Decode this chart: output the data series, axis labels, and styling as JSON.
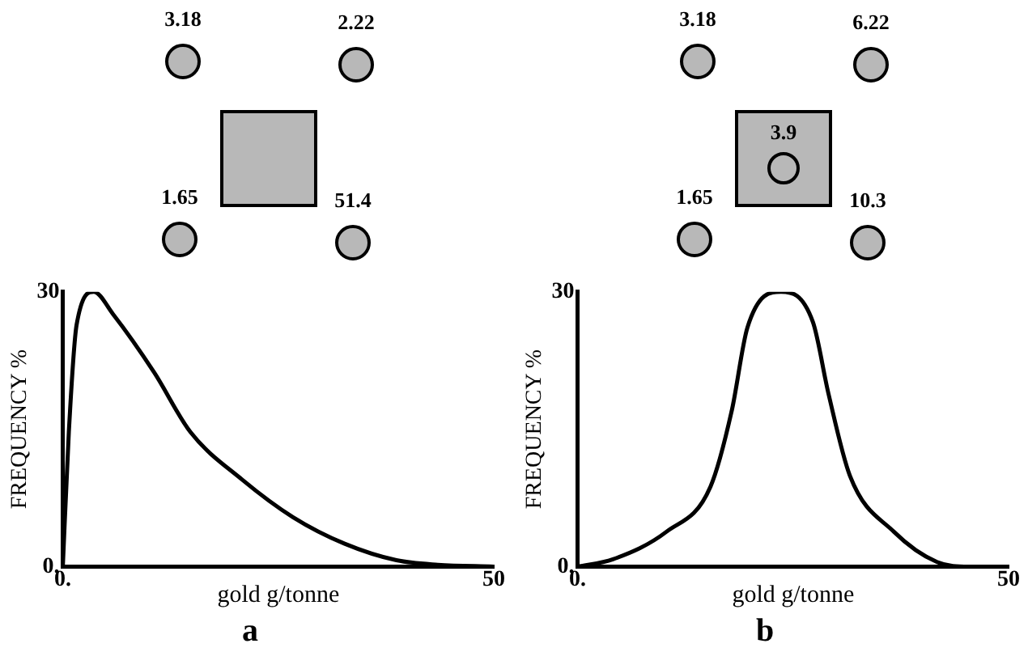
{
  "chart_data": [
    {
      "type": "line",
      "title": "a",
      "xlabel": "gold g/tonne",
      "ylabel": "FREQUENCY %",
      "annotations": [
        "3.18",
        "2.22",
        "1.65",
        "51.4"
      ],
      "xlim": [
        0,
        50
      ],
      "ylim": [
        0,
        30
      ],
      "xticks": [
        {
          "value": 0,
          "label": "0."
        },
        50
      ],
      "yticks": [
        {
          "value": 0,
          "label": "0."
        },
        30
      ],
      "marker": "none",
      "series": [
        {
          "color": "#000000",
          "x": [
            0,
            0.7,
            1.6,
            3.6,
            5.8,
            10.6,
            14.8,
            20.8,
            26.7,
            32.7,
            38.7,
            43.5,
            50
          ],
          "values": [
            0,
            14.7,
            26.4,
            30,
            27.6,
            21.2,
            14.7,
            9.5,
            5.4,
            2.5,
            0.7,
            0.2,
            0
          ]
        }
      ]
    },
    {
      "type": "line",
      "title": "b",
      "xlabel": "gold g/tonne",
      "ylabel": "FREQUENCY %",
      "annotations": [
        "3.18",
        "6.22",
        "3.9",
        "1.65",
        "10.3"
      ],
      "xlim": [
        0,
        50
      ],
      "ylim": [
        0,
        30
      ],
      "xticks": [
        {
          "value": 0,
          "label": "0."
        },
        50
      ],
      "yticks": [
        {
          "value": 0,
          "label": "0."
        },
        30
      ],
      "marker": "none",
      "series": [
        {
          "color": "#000000",
          "x": [
            0,
            4.1,
            10.3,
            15.4,
            17.9,
            19.7,
            23.6,
            27.3,
            29.1,
            31.6,
            36.7,
            41.7,
            45.4,
            50
          ],
          "values": [
            0,
            0.8,
            3.8,
            8.7,
            17.1,
            26.1,
            30,
            26.7,
            18.9,
            9.9,
            3.8,
            0.5,
            0,
            0
          ]
        }
      ]
    }
  ]
}
